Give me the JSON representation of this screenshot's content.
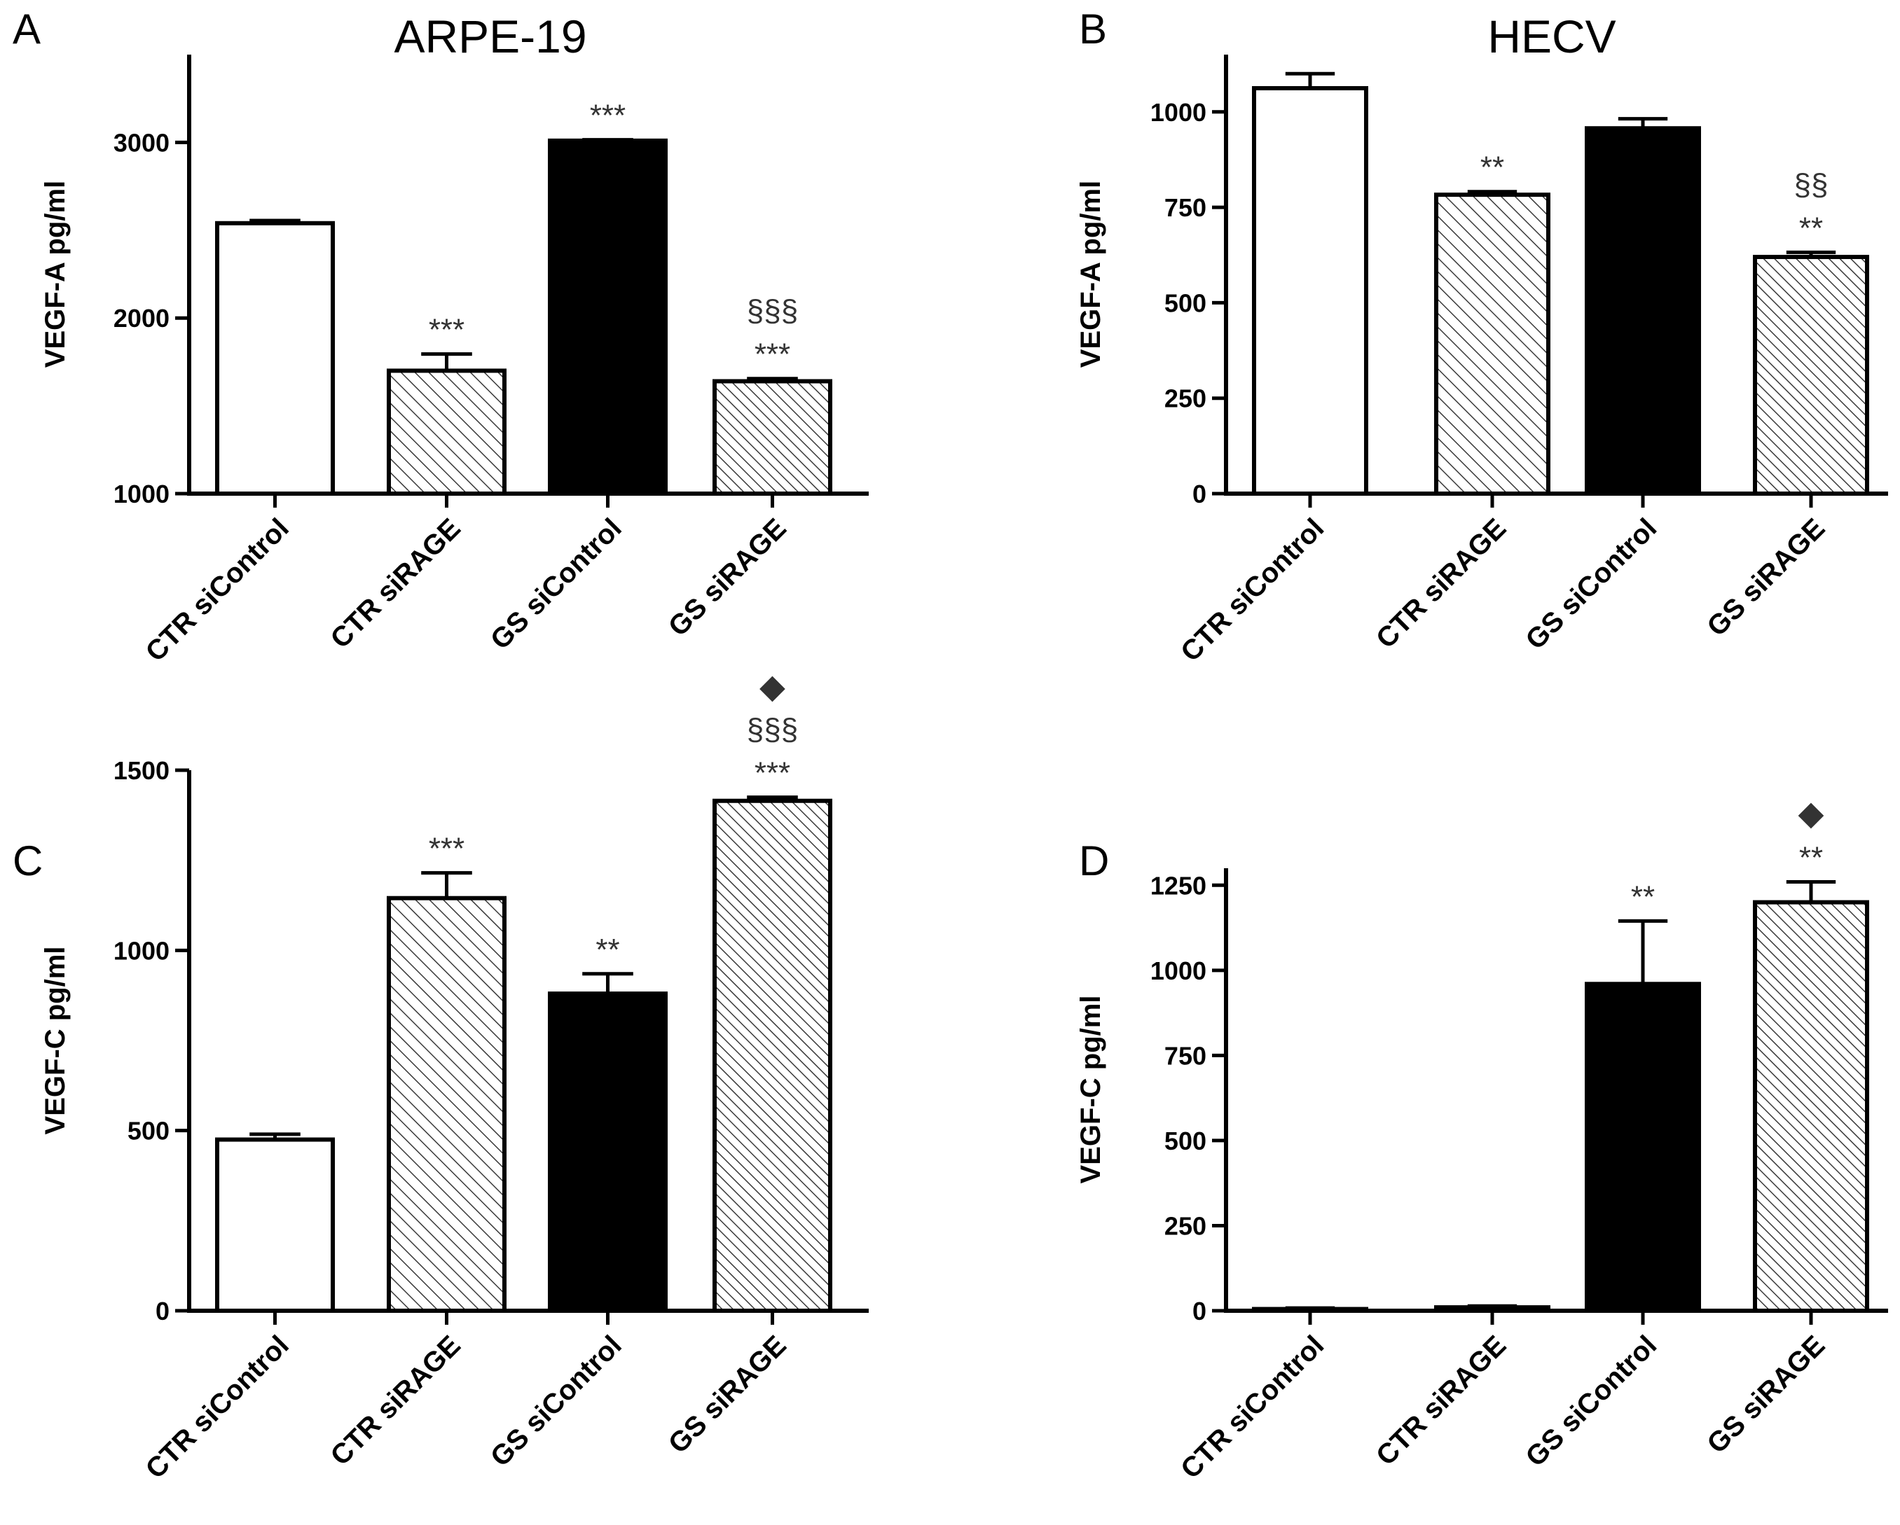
{
  "colors": {
    "hatch": "#3a3a3a",
    "axis": "#000000",
    "annotation": "#333333"
  },
  "chart_data": [
    {
      "panel": "A",
      "title": "ARPE-19",
      "type": "bar",
      "ylabel": "VEGF-A pg/ml",
      "ylim": [
        1000,
        3500
      ],
      "yticks": [
        1000,
        2000,
        3000
      ],
      "categories": [
        "CTR siControl",
        "CTR siRAGE",
        "GS siControl",
        "GS siRAGE"
      ],
      "fills": [
        "white",
        "hatch",
        "black",
        "hatch-dense"
      ],
      "values": [
        2540,
        1700,
        3010,
        1640
      ],
      "errors": [
        15,
        95,
        5,
        15
      ],
      "annotations": [
        [],
        [
          "***"
        ],
        [
          "***"
        ],
        [
          "***",
          "§§§"
        ]
      ]
    },
    {
      "panel": "B",
      "title": "HECV",
      "type": "bar",
      "ylabel": "VEGF-A pg/ml",
      "ylim": [
        0,
        1150
      ],
      "yticks": [
        0,
        250,
        500,
        750,
        1000
      ],
      "categories": [
        "CTR siControl",
        "CTR siRAGE",
        "GS siControl",
        "GS siRAGE"
      ],
      "fills": [
        "white",
        "hatch",
        "black",
        "hatch-dense"
      ],
      "values": [
        1062,
        783,
        957,
        620
      ],
      "errors": [
        38,
        8,
        25,
        12
      ],
      "annotations": [
        [],
        [
          "**"
        ],
        [],
        [
          "**",
          "§§"
        ]
      ]
    },
    {
      "panel": "C",
      "title": "",
      "type": "bar",
      "ylabel": "VEGF-C pg/ml",
      "ylim": [
        0,
        1500
      ],
      "yticks": [
        0,
        500,
        1000,
        1500
      ],
      "categories": [
        "CTR siControl",
        "CTR siRAGE",
        "GS siControl",
        "GS siRAGE"
      ],
      "fills": [
        "white",
        "hatch",
        "black",
        "hatch-dense"
      ],
      "values": [
        475,
        1145,
        880,
        1415
      ],
      "errors": [
        15,
        70,
        55,
        10
      ],
      "annotations": [
        [],
        [
          "***"
        ],
        [
          "**"
        ],
        [
          "***",
          "§§§",
          "◆"
        ]
      ]
    },
    {
      "panel": "D",
      "title": "",
      "type": "bar",
      "ylabel": "VEGF-C pg/ml",
      "ylim": [
        0,
        1300
      ],
      "yticks": [
        0,
        250,
        500,
        750,
        1000,
        1250
      ],
      "categories": [
        "CTR siControl",
        "CTR siRAGE",
        "GS siControl",
        "GS siRAGE"
      ],
      "fills": [
        "white",
        "hatch",
        "black",
        "hatch-dense"
      ],
      "values": [
        5,
        10,
        960,
        1200
      ],
      "errors": [
        3,
        4,
        185,
        60
      ],
      "annotations": [
        [],
        [],
        [
          "**"
        ],
        [
          "**",
          "◆"
        ]
      ]
    }
  ]
}
